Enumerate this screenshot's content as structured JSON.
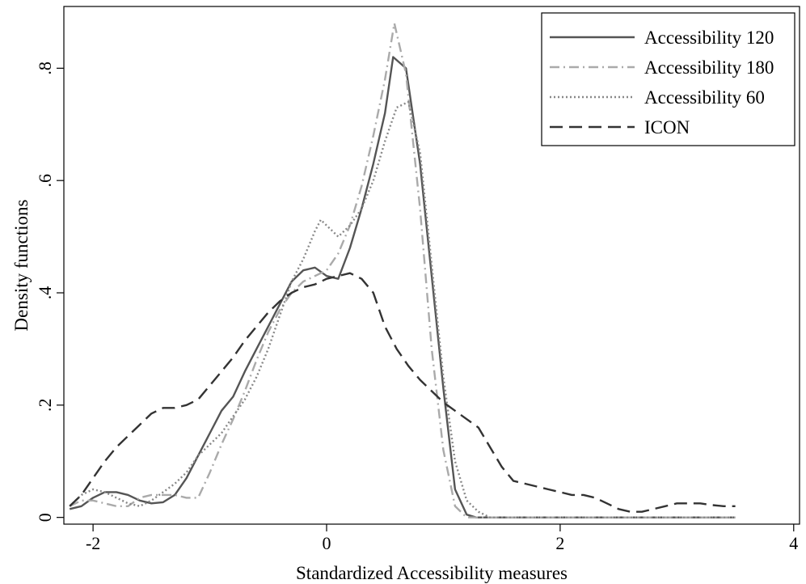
{
  "chart_data": {
    "type": "line",
    "xlabel": "Standardized Accessibility measures",
    "ylabel": "Density functions",
    "xlim": [
      -2.25,
      4.05
    ],
    "ylim": [
      -0.012,
      0.91
    ],
    "xticks": [
      -2,
      0,
      2,
      4
    ],
    "xtick_labels": [
      "-2",
      "0",
      "2",
      "4"
    ],
    "yticks": [
      0,
      0.2,
      0.4,
      0.6,
      0.8
    ],
    "ytick_labels": [
      "0",
      ".2",
      ".4",
      ".6",
      ".8"
    ],
    "grid": false,
    "legend": {
      "position": "top-right"
    },
    "series": [
      {
        "name": "Accessibility 120",
        "color": "#555555",
        "dash": "solid",
        "x": [
          -2.2,
          -2.1,
          -2.0,
          -1.9,
          -1.8,
          -1.7,
          -1.6,
          -1.5,
          -1.4,
          -1.3,
          -1.2,
          -1.1,
          -1.0,
          -0.9,
          -0.8,
          -0.7,
          -0.6,
          -0.5,
          -0.4,
          -0.3,
          -0.2,
          -0.1,
          0.0,
          0.1,
          0.2,
          0.3,
          0.4,
          0.5,
          0.57,
          0.68,
          0.8,
          0.9,
          1.0,
          1.1,
          1.2,
          1.28,
          1.4,
          1.6,
          2.0,
          2.5,
          3.0,
          3.5
        ],
        "y": [
          0.015,
          0.02,
          0.035,
          0.045,
          0.045,
          0.04,
          0.03,
          0.025,
          0.027,
          0.04,
          0.07,
          0.11,
          0.15,
          0.19,
          0.215,
          0.26,
          0.3,
          0.34,
          0.38,
          0.42,
          0.44,
          0.445,
          0.43,
          0.425,
          0.48,
          0.55,
          0.63,
          0.72,
          0.82,
          0.8,
          0.63,
          0.43,
          0.23,
          0.05,
          0.005,
          0.0,
          0.0,
          0.0,
          0.0,
          0.0,
          0.0,
          0.0
        ]
      },
      {
        "name": "Accessibility 180",
        "color": "#aaaaaa",
        "dash": "dashdot",
        "x": [
          -2.2,
          -2.1,
          -2.0,
          -1.9,
          -1.8,
          -1.7,
          -1.6,
          -1.5,
          -1.4,
          -1.3,
          -1.2,
          -1.1,
          -1.0,
          -0.9,
          -0.8,
          -0.7,
          -0.6,
          -0.5,
          -0.4,
          -0.3,
          -0.2,
          -0.1,
          0.0,
          0.1,
          0.2,
          0.3,
          0.4,
          0.5,
          0.58,
          0.68,
          0.8,
          0.9,
          1.0,
          1.1,
          1.2,
          1.3,
          1.6,
          2.0,
          2.5,
          3.0,
          3.5
        ],
        "y": [
          0.02,
          0.03,
          0.03,
          0.025,
          0.02,
          0.02,
          0.035,
          0.04,
          0.04,
          0.04,
          0.035,
          0.035,
          0.08,
          0.13,
          0.175,
          0.225,
          0.28,
          0.33,
          0.37,
          0.4,
          0.42,
          0.43,
          0.44,
          0.47,
          0.52,
          0.59,
          0.68,
          0.78,
          0.88,
          0.79,
          0.55,
          0.3,
          0.12,
          0.02,
          0.0,
          0.0,
          0.0,
          0.0,
          0.0,
          0.0,
          0.0
        ]
      },
      {
        "name": "Accessibility 60",
        "color": "#888888",
        "dash": "dotted",
        "x": [
          -2.2,
          -2.1,
          -2.0,
          -1.9,
          -1.8,
          -1.7,
          -1.6,
          -1.5,
          -1.4,
          -1.3,
          -1.2,
          -1.1,
          -1.0,
          -0.9,
          -0.8,
          -0.7,
          -0.6,
          -0.5,
          -0.4,
          -0.3,
          -0.2,
          -0.1,
          -0.05,
          0.0,
          0.1,
          0.2,
          0.3,
          0.4,
          0.5,
          0.6,
          0.7,
          0.8,
          0.9,
          1.0,
          1.1,
          1.2,
          1.3,
          1.4,
          1.6,
          2.0,
          2.5,
          3.0,
          3.5
        ],
        "y": [
          0.02,
          0.04,
          0.05,
          0.045,
          0.035,
          0.025,
          0.02,
          0.03,
          0.045,
          0.06,
          0.08,
          0.11,
          0.13,
          0.15,
          0.18,
          0.21,
          0.25,
          0.3,
          0.36,
          0.42,
          0.46,
          0.51,
          0.53,
          0.52,
          0.5,
          0.52,
          0.55,
          0.6,
          0.67,
          0.73,
          0.74,
          0.65,
          0.45,
          0.25,
          0.1,
          0.03,
          0.01,
          0.0,
          0.0,
          0.0,
          0.0,
          0.0,
          0.0
        ]
      },
      {
        "name": "ICON",
        "color": "#333333",
        "dash": "dashed",
        "x": [
          -2.2,
          -2.1,
          -2.0,
          -1.9,
          -1.8,
          -1.7,
          -1.6,
          -1.5,
          -1.4,
          -1.3,
          -1.2,
          -1.1,
          -1.0,
          -0.9,
          -0.8,
          -0.7,
          -0.6,
          -0.5,
          -0.4,
          -0.3,
          -0.2,
          -0.1,
          0.0,
          0.1,
          0.2,
          0.3,
          0.4,
          0.5,
          0.6,
          0.7,
          0.8,
          0.9,
          1.0,
          1.1,
          1.2,
          1.3,
          1.4,
          1.5,
          1.6,
          1.7,
          1.8,
          1.9,
          2.0,
          2.1,
          2.2,
          2.3,
          2.4,
          2.5,
          2.6,
          2.7,
          2.8,
          2.9,
          3.0,
          3.1,
          3.2,
          3.3,
          3.4,
          3.5
        ],
        "y": [
          0.02,
          0.04,
          0.07,
          0.1,
          0.125,
          0.145,
          0.165,
          0.185,
          0.195,
          0.195,
          0.2,
          0.21,
          0.235,
          0.26,
          0.285,
          0.315,
          0.34,
          0.365,
          0.385,
          0.4,
          0.41,
          0.415,
          0.425,
          0.43,
          0.435,
          0.425,
          0.4,
          0.34,
          0.3,
          0.27,
          0.245,
          0.225,
          0.205,
          0.19,
          0.175,
          0.16,
          0.125,
          0.09,
          0.065,
          0.06,
          0.055,
          0.05,
          0.045,
          0.04,
          0.04,
          0.035,
          0.025,
          0.015,
          0.01,
          0.01,
          0.015,
          0.02,
          0.025,
          0.025,
          0.025,
          0.022,
          0.02,
          0.02
        ]
      }
    ]
  }
}
